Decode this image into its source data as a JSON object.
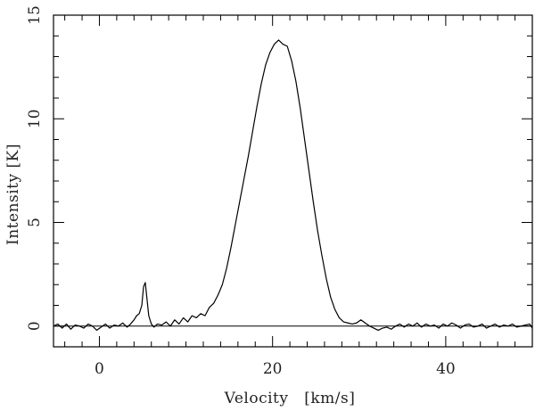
{
  "chart_data": {
    "type": "line",
    "title": "",
    "xlabel": "Velocity   [km/s]",
    "ylabel": "Intensity [K]",
    "xlim": [
      -5.3,
      50
    ],
    "ylim": [
      -1,
      15
    ],
    "x_ticks": [
      0,
      20,
      40
    ],
    "y_ticks": [
      0,
      5,
      10,
      15
    ],
    "x_minor_step": 2,
    "y_minor_step": 1,
    "baseline": 0,
    "grid": false,
    "legend": "none",
    "colors": {
      "line": "#000000",
      "axes": "#000000",
      "text": "#222222"
    },
    "series": [
      {
        "x": [
          -5.3,
          -4.8,
          -4.3,
          -3.8,
          -3.3,
          -2.8,
          -2.3,
          -1.8,
          -1.3,
          -0.8,
          -0.3,
          0.2,
          0.7,
          1.2,
          1.7,
          2.2,
          2.7,
          3.2,
          3.6,
          4.0,
          4.3,
          4.6,
          4.9,
          5.1,
          5.3,
          5.5,
          5.7,
          6.0,
          6.3,
          6.7,
          7.2,
          7.7,
          8.2,
          8.7,
          9.2,
          9.7,
          10.2,
          10.7,
          11.2,
          11.7,
          12.2,
          12.7,
          13.2,
          13.7,
          14.2,
          14.7,
          15.2,
          15.7,
          16.2,
          16.7,
          17.2,
          17.7,
          18.2,
          18.7,
          19.2,
          19.7,
          20.2,
          20.7,
          21.2,
          21.7,
          22.2,
          22.7,
          23.2,
          23.7,
          24.2,
          24.7,
          25.2,
          25.7,
          26.2,
          26.7,
          27.2,
          27.7,
          28.2,
          28.7,
          29.2,
          29.7,
          30.2,
          30.7,
          31.2,
          31.7,
          32.2,
          32.7,
          33.2,
          33.7,
          34.2,
          34.7,
          35.2,
          35.7,
          36.2,
          36.7,
          37.2,
          37.7,
          38.2,
          38.7,
          39.2,
          39.7,
          40.2,
          40.7,
          41.2,
          41.7,
          42.2,
          42.7,
          43.2,
          43.7,
          44.2,
          44.7,
          45.2,
          45.7,
          46.2,
          46.7,
          47.2,
          47.7,
          48.2,
          48.7,
          49.2,
          49.7,
          50.0
        ],
        "y": [
          0.0,
          0.1,
          -0.1,
          0.1,
          -0.15,
          0.05,
          0.0,
          -0.1,
          0.1,
          0.0,
          -0.2,
          -0.05,
          0.1,
          -0.1,
          0.05,
          0.0,
          0.15,
          -0.05,
          0.1,
          0.3,
          0.5,
          0.6,
          1.0,
          1.9,
          2.1,
          1.3,
          0.5,
          0.1,
          -0.05,
          0.1,
          0.05,
          0.2,
          0.0,
          0.3,
          0.1,
          0.4,
          0.2,
          0.5,
          0.4,
          0.6,
          0.5,
          0.9,
          1.1,
          1.5,
          2.0,
          2.8,
          3.8,
          4.9,
          6.0,
          7.1,
          8.2,
          9.4,
          10.6,
          11.7,
          12.6,
          13.2,
          13.6,
          13.8,
          13.6,
          13.5,
          12.8,
          11.8,
          10.5,
          9.0,
          7.5,
          6.0,
          4.6,
          3.4,
          2.3,
          1.4,
          0.8,
          0.4,
          0.2,
          0.15,
          0.1,
          0.15,
          0.3,
          0.15,
          0.0,
          -0.1,
          -0.2,
          -0.1,
          -0.05,
          -0.15,
          0.0,
          0.1,
          -0.05,
          0.1,
          0.0,
          0.15,
          -0.05,
          0.1,
          0.0,
          0.05,
          -0.1,
          0.1,
          0.0,
          0.15,
          0.05,
          -0.1,
          0.05,
          0.1,
          -0.05,
          0.0,
          0.1,
          -0.1,
          0.0,
          0.1,
          -0.05,
          0.05,
          0.0,
          0.1,
          -0.05,
          0.0,
          0.05,
          0.1,
          -0.1
        ]
      }
    ]
  }
}
